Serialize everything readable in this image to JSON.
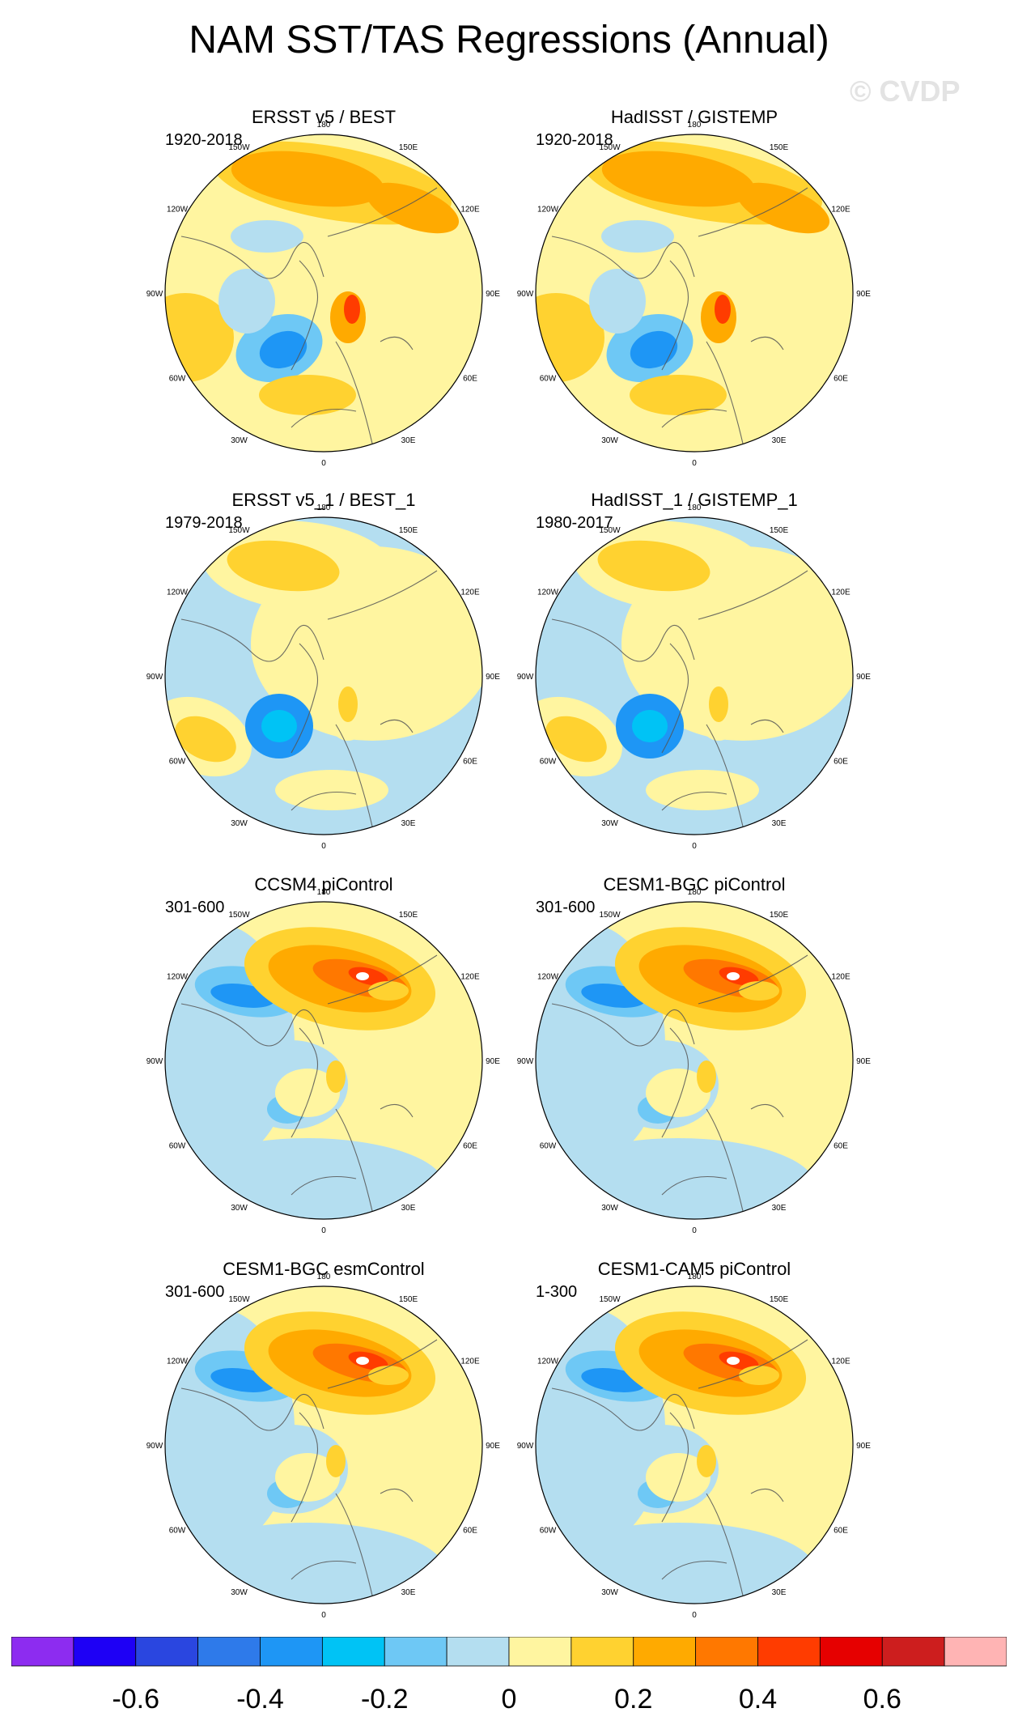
{
  "title": "NAM SST/TAS Regressions (Annual)",
  "watermark": "© CVDP",
  "lon_labels": [
    "180",
    "150E",
    "120E",
    "90E",
    "60E",
    "30E",
    "0",
    "30W",
    "60W",
    "90W",
    "120W",
    "150W"
  ],
  "panels": [
    {
      "title": "ERSST v5 / BEST",
      "years": "1920-2018",
      "pattern": "obs"
    },
    {
      "title": "HadISST / GISTEMP",
      "years": "1920-2018",
      "pattern": "obs"
    },
    {
      "title": "ERSST v5_1 / BEST_1",
      "years": "1979-2018",
      "pattern": "obs_recent"
    },
    {
      "title": "HadISST_1 / GISTEMP_1",
      "years": "1980-2017",
      "pattern": "obs_recent"
    },
    {
      "title": "CCSM4 piControl",
      "years": "301-600",
      "pattern": "model"
    },
    {
      "title": "CESM1-BGC piControl",
      "years": "301-600",
      "pattern": "model"
    },
    {
      "title": "CESM1-BGC esmControl",
      "years": "301-600",
      "pattern": "model"
    },
    {
      "title": "CESM1-CAM5 piControl",
      "years": "1-300",
      "pattern": "model"
    }
  ],
  "colorbar": {
    "colors": [
      "#8d2cf0",
      "#1e00f5",
      "#2a46e0",
      "#2e7aea",
      "#1e96f5",
      "#00c3f5",
      "#6ec8f5",
      "#b4def0",
      "#fff5a0",
      "#ffd230",
      "#ffaa00",
      "#ff7800",
      "#ff3c00",
      "#e60000",
      "#cd1e1e",
      "#ffb4b4"
    ],
    "tick_labels": [
      "-0.6",
      "-0.4",
      "-0.2",
      "0",
      "0.2",
      "0.4",
      "0.6"
    ]
  },
  "chart_data": {
    "type": "heatmap",
    "title": "NAM SST/TAS Regressions (Annual)",
    "projection": "north polar stereographic",
    "color_levels": [
      -0.7,
      -0.6,
      -0.5,
      -0.4,
      -0.3,
      -0.2,
      -0.1,
      0,
      0.1,
      0.2,
      0.3,
      0.4,
      0.5,
      0.6,
      0.7
    ],
    "color_range": [
      -0.8,
      0.8
    ]
  }
}
